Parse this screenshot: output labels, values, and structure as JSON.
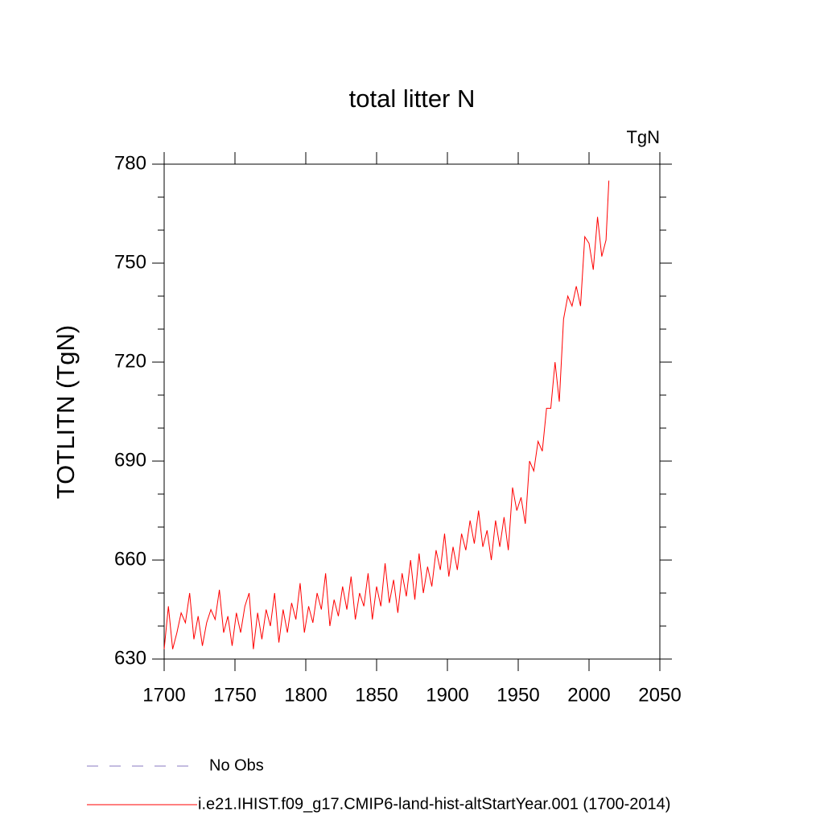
{
  "chart_data": {
    "type": "line",
    "title": "total litter N",
    "units_label": "TgN",
    "y_label": "TOTLITN  (TgN)",
    "x": [
      1700,
      1703,
      1706,
      1709,
      1712,
      1715,
      1718,
      1721,
      1724,
      1727,
      1730,
      1733,
      1736,
      1739,
      1742,
      1745,
      1748,
      1751,
      1754,
      1757,
      1760,
      1763,
      1766,
      1769,
      1772,
      1775,
      1778,
      1781,
      1784,
      1787,
      1790,
      1793,
      1796,
      1799,
      1802,
      1805,
      1808,
      1811,
      1814,
      1817,
      1820,
      1823,
      1826,
      1829,
      1832,
      1835,
      1838,
      1841,
      1844,
      1847,
      1850,
      1853,
      1856,
      1859,
      1862,
      1865,
      1868,
      1871,
      1874,
      1877,
      1880,
      1883,
      1886,
      1889,
      1892,
      1895,
      1898,
      1901,
      1904,
      1907,
      1910,
      1913,
      1916,
      1919,
      1922,
      1925,
      1928,
      1931,
      1934,
      1937,
      1940,
      1943,
      1946,
      1949,
      1952,
      1955,
      1958,
      1961,
      1964,
      1967,
      1970,
      1973,
      1976,
      1979,
      1982,
      1985,
      1988,
      1991,
      1994,
      1997,
      2000,
      2003,
      2006,
      2009,
      2012,
      2014
    ],
    "series": [
      {
        "name": "i.e21.IHIST.f09_g17.CMIP6-land-hist-altStartYear.001 (1700-2014)",
        "color": "#ff0000",
        "values": [
          633,
          646,
          633,
          638,
          644,
          641,
          650,
          636,
          643,
          634,
          641,
          645,
          642,
          651,
          638,
          643,
          634,
          644,
          638,
          646,
          650,
          633,
          644,
          636,
          645,
          640,
          650,
          635,
          645,
          638,
          647,
          642,
          653,
          638,
          646,
          641,
          650,
          645,
          656,
          640,
          648,
          643,
          652,
          645,
          655,
          642,
          650,
          646,
          656,
          642,
          652,
          646,
          659,
          647,
          654,
          644,
          656,
          649,
          660,
          648,
          662,
          650,
          658,
          652,
          663,
          657,
          668,
          655,
          664,
          657,
          668,
          663,
          672,
          665,
          675,
          664,
          669,
          660,
          672,
          664,
          673,
          663,
          682,
          675,
          679,
          671,
          690,
          687,
          696,
          693,
          706,
          706,
          720,
          708,
          733,
          740,
          737,
          743,
          737,
          758,
          756,
          748,
          764,
          752,
          757,
          775
        ]
      }
    ],
    "legend_entries": [
      {
        "name": "No Obs",
        "color": "#8878c0",
        "style": "dashed"
      }
    ],
    "xlim": [
      1700,
      2050
    ],
    "xticks": [
      1700,
      1750,
      1800,
      1850,
      1900,
      1950,
      2000,
      2050
    ],
    "ylim": [
      630,
      780
    ],
    "yticks": [
      630,
      660,
      690,
      720,
      750,
      780
    ],
    "yminor_ticks": [
      640,
      650,
      670,
      680,
      700,
      710,
      730,
      740,
      760,
      770
    ]
  }
}
